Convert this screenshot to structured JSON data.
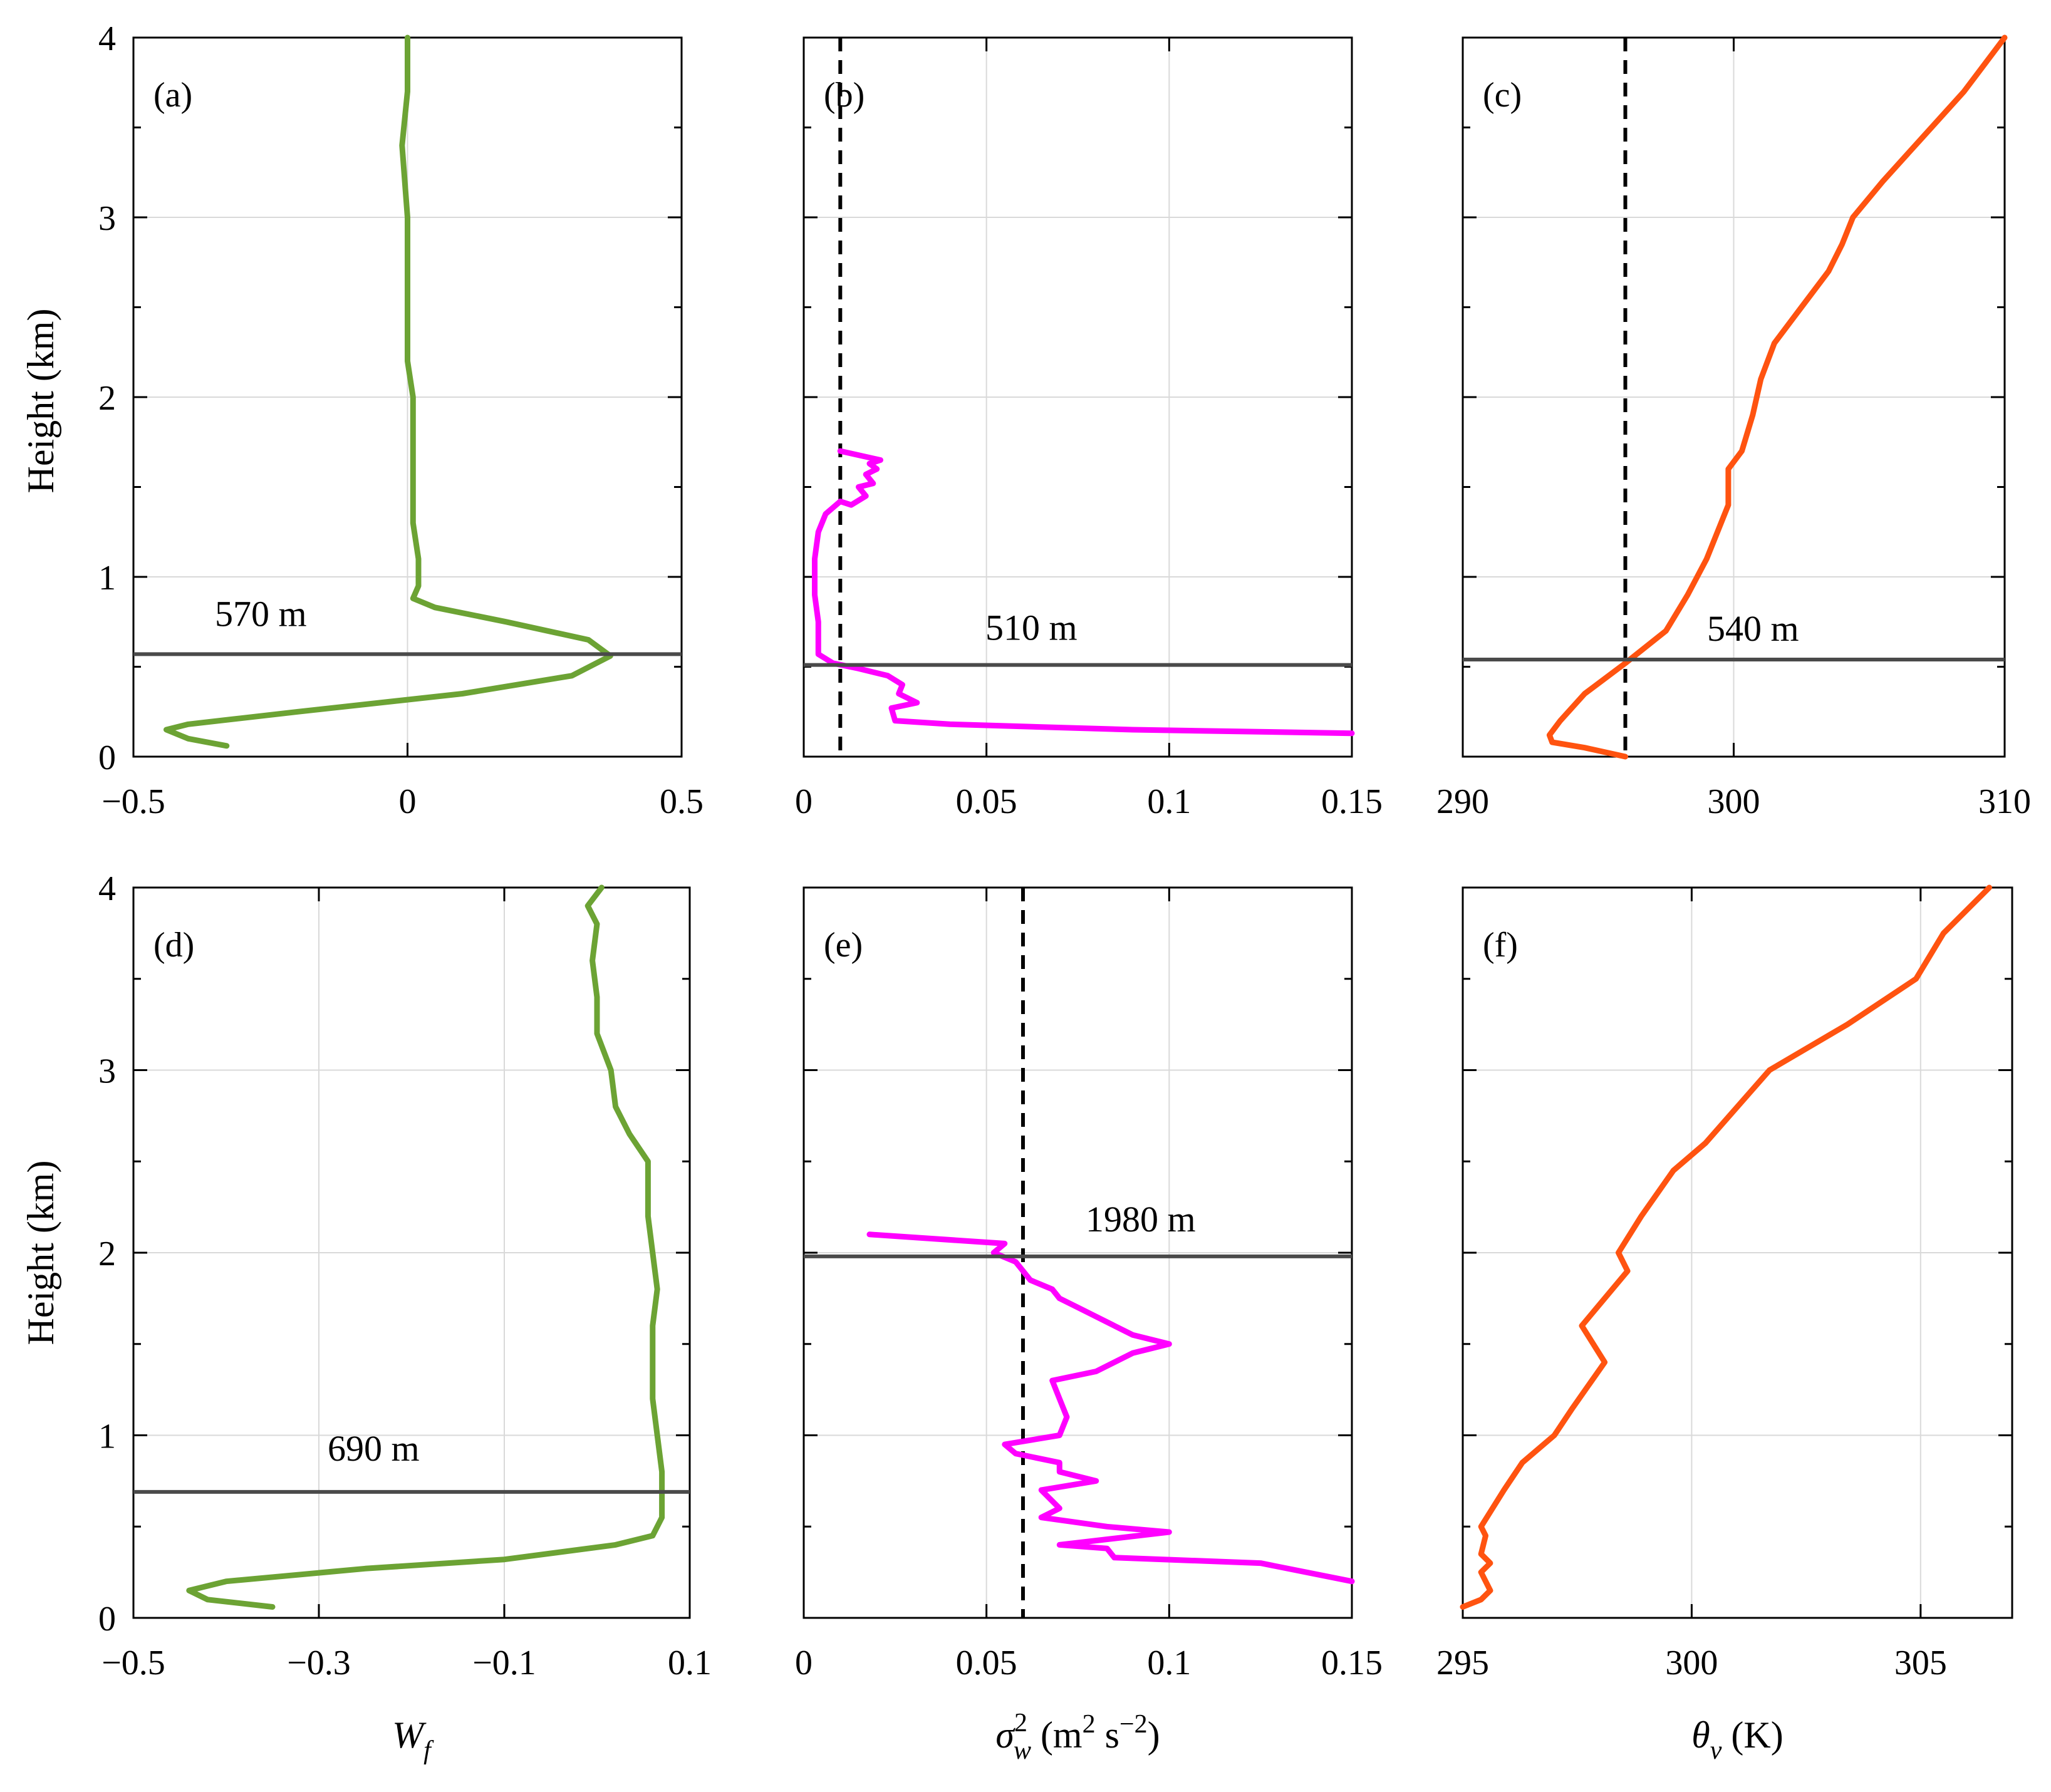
{
  "chart_data": [
    {
      "type": "line",
      "panel": "(a)",
      "xlim": [
        -0.5,
        0.5
      ],
      "ylim": [
        0,
        4
      ],
      "xticks": [
        -0.5,
        0,
        0.5
      ],
      "xtick_labels": [
        "−0.5",
        "0",
        "0.5"
      ],
      "yticks": [
        0,
        1,
        2,
        3,
        4
      ],
      "ytick_labels": [
        "0",
        "1",
        "2",
        "3",
        "4"
      ],
      "ylabel": "Height (km)",
      "xlabel": "",
      "color": "#6ca334",
      "hline": {
        "y": 0.57,
        "label": "570 m"
      },
      "series": [
        {
          "x": [
            -0.33,
            -0.4,
            -0.44,
            -0.4,
            -0.2,
            0.1,
            0.3,
            0.37,
            0.33,
            0.18,
            0.05,
            0.01,
            0.02,
            0.02,
            0.01,
            0.01,
            0.01,
            0.0,
            0.0,
            0.0,
            -0.01,
            0.0,
            0.0,
            0.0
          ],
          "y": [
            0.06,
            0.1,
            0.15,
            0.18,
            0.25,
            0.35,
            0.45,
            0.56,
            0.65,
            0.75,
            0.83,
            0.88,
            0.95,
            1.1,
            1.3,
            1.6,
            2.0,
            2.2,
            2.6,
            3.0,
            3.4,
            3.7,
            3.85,
            4.0
          ]
        }
      ]
    },
    {
      "type": "line",
      "panel": "(b)",
      "xlim": [
        0,
        0.15
      ],
      "ylim": [
        0,
        4
      ],
      "xticks": [
        0,
        0.05,
        0.1,
        0.15
      ],
      "xtick_labels": [
        "0",
        "0.05",
        "0.1",
        "0.15"
      ],
      "yticks": [
        0,
        1,
        2,
        3,
        4
      ],
      "ytick_labels": [],
      "ylabel": "",
      "xlabel": "",
      "color": "#ff00ff",
      "hline": {
        "y": 0.51,
        "label": "510 m"
      },
      "vline": {
        "x": 0.01
      },
      "series": [
        {
          "x": [
            0.15,
            0.09,
            0.04,
            0.025,
            0.024,
            0.031,
            0.026,
            0.027,
            0.023,
            0.015,
            0.008,
            0.004,
            0.004,
            0.003,
            0.003,
            0.004,
            0.006,
            0.01,
            0.013,
            0.017,
            0.015,
            0.019,
            0.017,
            0.02,
            0.018,
            0.021,
            0.01
          ],
          "y": [
            0.13,
            0.15,
            0.18,
            0.2,
            0.27,
            0.3,
            0.35,
            0.4,
            0.45,
            0.49,
            0.52,
            0.57,
            0.75,
            0.9,
            1.1,
            1.25,
            1.35,
            1.42,
            1.4,
            1.45,
            1.5,
            1.52,
            1.57,
            1.6,
            1.63,
            1.65,
            1.7
          ]
        }
      ]
    },
    {
      "type": "line",
      "panel": "(c)",
      "xlim": [
        290,
        310
      ],
      "ylim": [
        0,
        4
      ],
      "xticks": [
        290,
        300,
        310
      ],
      "xtick_labels": [
        "290",
        "300",
        "310"
      ],
      "yticks": [
        0,
        1,
        2,
        3,
        4
      ],
      "ytick_labels": [],
      "ylabel": "",
      "xlabel": "",
      "color": "#ff5310",
      "hline": {
        "y": 0.54,
        "label": "540 m"
      },
      "vline": {
        "x": 296
      },
      "series": [
        {
          "x": [
            296.0,
            294.5,
            293.3,
            293.2,
            293.6,
            294.5,
            296.0,
            297.5,
            298.3,
            299.0,
            299.8,
            299.8,
            300.3,
            300.7,
            301.0,
            301.5,
            302.5,
            303.5,
            304.0,
            304.4,
            305.5,
            307.0,
            308.5,
            310.0
          ],
          "y": [
            0.0,
            0.05,
            0.08,
            0.12,
            0.2,
            0.35,
            0.52,
            0.7,
            0.9,
            1.1,
            1.4,
            1.6,
            1.7,
            1.9,
            2.1,
            2.3,
            2.5,
            2.7,
            2.85,
            3.0,
            3.2,
            3.45,
            3.7,
            4.0
          ]
        }
      ]
    },
    {
      "type": "line",
      "panel": "(d)",
      "xlim": [
        -0.5,
        0.1
      ],
      "ylim": [
        0,
        4
      ],
      "xticks": [
        -0.5,
        -0.3,
        -0.1,
        0.1
      ],
      "xtick_labels": [
        "−0.5",
        "−0.3",
        "−0.1",
        "0.1"
      ],
      "yticks": [
        0,
        1,
        2,
        3,
        4
      ],
      "ytick_labels": [
        "0",
        "1",
        "2",
        "3",
        "4"
      ],
      "ylabel": "Height (km)",
      "xlabel": "W_f",
      "color": "#6ca334",
      "hline": {
        "y": 0.69,
        "label": "690 m"
      },
      "series": [
        {
          "x": [
            -0.35,
            -0.42,
            -0.44,
            -0.4,
            -0.25,
            -0.1,
            0.02,
            0.06,
            0.07,
            0.07,
            0.065,
            0.06,
            0.06,
            0.06,
            0.065,
            0.06,
            0.055,
            0.055,
            0.035,
            0.02,
            0.015,
            0.0,
            0.0,
            -0.005,
            0.0,
            -0.01,
            0.005
          ],
          "y": [
            0.06,
            0.1,
            0.15,
            0.2,
            0.27,
            0.32,
            0.4,
            0.45,
            0.55,
            0.8,
            1.0,
            1.2,
            1.4,
            1.6,
            1.8,
            2.0,
            2.2,
            2.5,
            2.65,
            2.8,
            3.0,
            3.2,
            3.4,
            3.6,
            3.8,
            3.9,
            4.0
          ]
        }
      ]
    },
    {
      "type": "line",
      "panel": "(e)",
      "xlim": [
        0,
        0.15
      ],
      "ylim": [
        0,
        4
      ],
      "xticks": [
        0,
        0.05,
        0.1,
        0.15
      ],
      "xtick_labels": [
        "0",
        "0.05",
        "0.1",
        "0.15"
      ],
      "yticks": [
        0,
        1,
        2,
        3,
        4
      ],
      "ytick_labels": [],
      "ylabel": "",
      "xlabel": "σ_w^2 (m^2 s^-2)",
      "color": "#ff00ff",
      "hline": {
        "y": 1.98,
        "label": "1980 m"
      },
      "vline": {
        "x": 0.06
      },
      "series": [
        {
          "x": [
            0.15,
            0.125,
            0.085,
            0.083,
            0.07,
            0.1,
            0.083,
            0.065,
            0.07,
            0.065,
            0.08,
            0.07,
            0.07,
            0.058,
            0.055,
            0.07,
            0.072,
            0.07,
            0.068,
            0.08,
            0.09,
            0.1,
            0.09,
            0.085,
            0.08,
            0.075,
            0.07,
            0.068,
            0.062,
            0.058,
            0.052,
            0.055,
            0.018
          ],
          "y": [
            0.2,
            0.3,
            0.33,
            0.38,
            0.4,
            0.47,
            0.5,
            0.55,
            0.6,
            0.7,
            0.75,
            0.8,
            0.85,
            0.9,
            0.95,
            1.0,
            1.1,
            1.2,
            1.3,
            1.35,
            1.45,
            1.5,
            1.55,
            1.6,
            1.65,
            1.7,
            1.75,
            1.8,
            1.85,
            1.95,
            2.0,
            2.05,
            2.1
          ]
        }
      ]
    },
    {
      "type": "line",
      "panel": "(f)",
      "xlim": [
        295,
        307
      ],
      "ylim": [
        0,
        4
      ],
      "xticks": [
        295,
        300,
        305
      ],
      "xtick_labels": [
        "295",
        "300",
        "305"
      ],
      "yticks": [
        0,
        1,
        2,
        3,
        4
      ],
      "ytick_labels": [],
      "ylabel": "",
      "xlabel": "θ_v (K)",
      "color": "#ff5310",
      "hline": null,
      "series": [
        {
          "x": [
            295.0,
            295.4,
            295.6,
            295.4,
            295.6,
            295.4,
            295.5,
            295.4,
            295.9,
            296.3,
            297.0,
            297.4,
            298.1,
            297.6,
            298.6,
            298.4,
            298.9,
            299.6,
            300.3,
            301.7,
            303.4,
            304.9,
            305.5,
            306.5
          ],
          "y": [
            0.06,
            0.1,
            0.15,
            0.25,
            0.3,
            0.35,
            0.45,
            0.5,
            0.7,
            0.85,
            1.0,
            1.15,
            1.4,
            1.6,
            1.9,
            2.0,
            2.2,
            2.45,
            2.6,
            3.0,
            3.25,
            3.5,
            3.75,
            4.0
          ]
        }
      ]
    }
  ]
}
